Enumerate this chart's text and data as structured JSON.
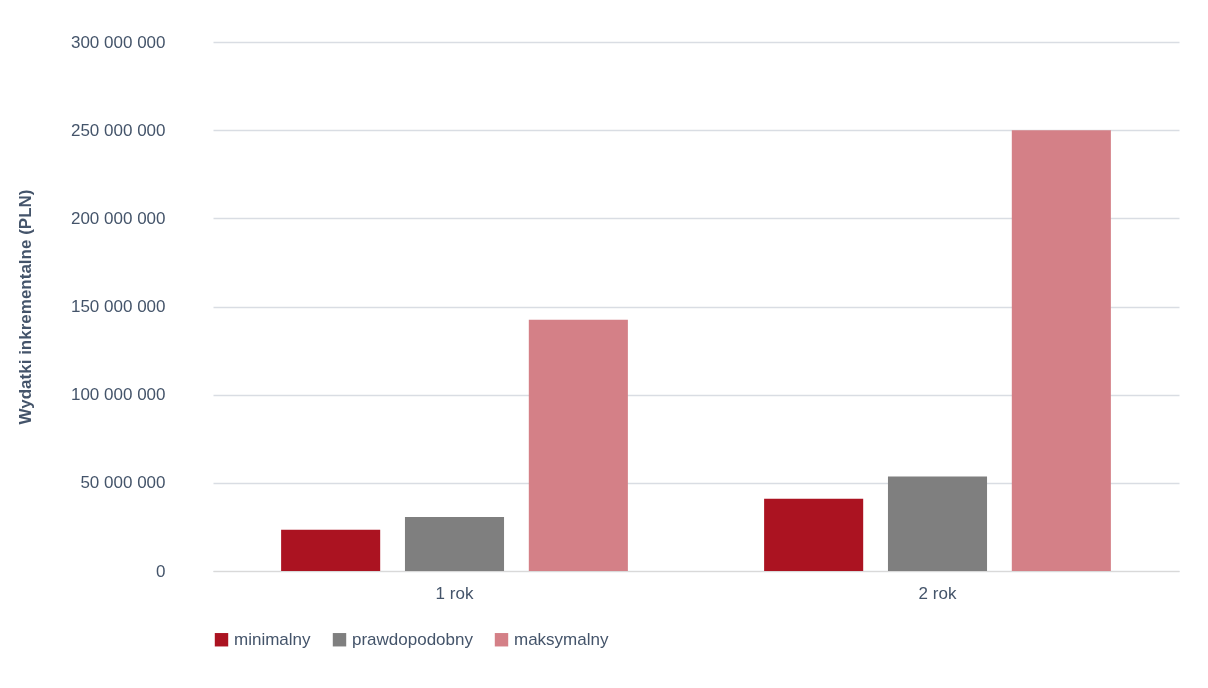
{
  "chart_data": {
    "type": "bar",
    "ylabel": "Wydatki inkrementalne (PLN)",
    "categories": [
      "1 rok",
      "2 rok"
    ],
    "series": [
      {
        "name": "minimalny",
        "color": "#ab1321",
        "values": [
          23400000,
          41000000
        ]
      },
      {
        "name": "prawdopodobny",
        "color": "#7f7f7f",
        "values": [
          30600000,
          53600000
        ]
      },
      {
        "name": "maksymalny",
        "color": "#d48087",
        "values": [
          142500000,
          250000000
        ]
      }
    ],
    "ylim": [
      0,
      300000000
    ],
    "yticks": [
      {
        "value": 0,
        "label": "0"
      },
      {
        "value": 50000000,
        "label": "50 000 000"
      },
      {
        "value": 100000000,
        "label": "100 000 000"
      },
      {
        "value": 150000000,
        "label": "150 000 000"
      },
      {
        "value": 200000000,
        "label": "200 000 000"
      },
      {
        "value": 250000000,
        "label": "250 000 000"
      },
      {
        "value": 300000000,
        "label": "300 000 000"
      }
    ],
    "grid": "y",
    "legend": "bottom"
  }
}
